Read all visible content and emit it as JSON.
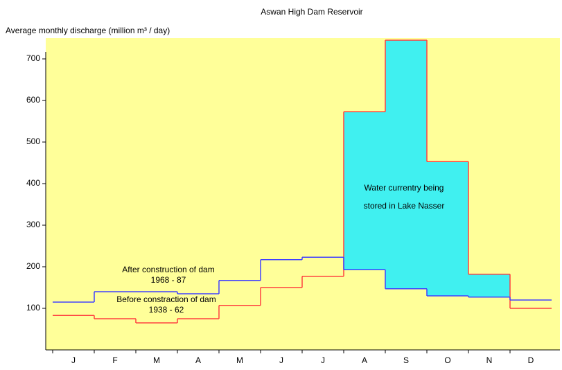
{
  "chart_data": {
    "type": "step",
    "title": "Aswan High Dam Reservoir",
    "y_label": "Average monthly discharge (million m³ / day)",
    "categories": [
      "J",
      "F",
      "M",
      "A",
      "M",
      "J",
      "J",
      "A",
      "S",
      "O",
      "N",
      "D"
    ],
    "series": [
      {
        "name": "Before constraction of dam",
        "color": "#ff4040",
        "values": [
          83,
          75,
          65,
          75,
          107,
          150,
          177,
          573,
          745,
          453,
          182,
          100
        ]
      },
      {
        "name": "After construction of dam",
        "color": "#4040ff",
        "values": [
          115,
          140,
          140,
          135,
          167,
          217,
          223,
          193,
          147,
          130,
          127,
          120
        ]
      }
    ],
    "ylim": [
      0,
      750
    ],
    "yticks": [
      100,
      200,
      300,
      400,
      500,
      600,
      700
    ],
    "stored_fill": "#40f0f0",
    "background": "#ffff99",
    "annotations": [
      {
        "lines": [
          "After construction of dam",
          "1968 - 87"
        ]
      },
      {
        "lines": [
          "Before constraction of dam",
          "1938 - 62"
        ]
      },
      {
        "lines": [
          "Water currentry being",
          "stored in Lake Nasser"
        ]
      }
    ]
  }
}
